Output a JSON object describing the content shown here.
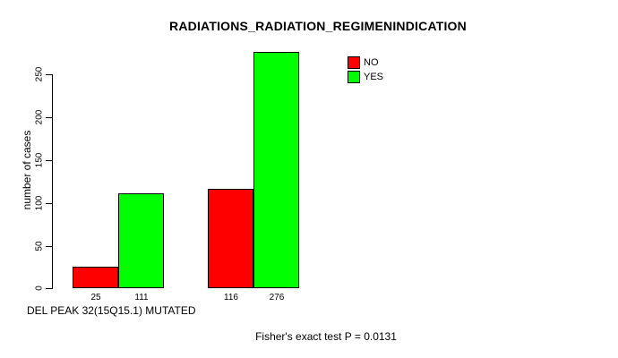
{
  "title": "RADIATIONS_RADIATION_REGIMENINDICATION",
  "y_axis": {
    "label": "number of cases",
    "ticks": [
      "0",
      "50",
      "100",
      "150",
      "200",
      "250"
    ]
  },
  "x_axis": {
    "label": "DEL PEAK 32(15Q15.1) MUTATED"
  },
  "legend": {
    "items": [
      {
        "label": "NO",
        "color": "#FF0000"
      },
      {
        "label": "YES",
        "color": "#00FF00"
      }
    ]
  },
  "footnote": "Fisher's exact test P = 0.0131",
  "chart_data": {
    "type": "bar",
    "grouped": true,
    "title": "RADIATIONS_RADIATION_REGIMENINDICATION",
    "xlabel": "DEL PEAK 32(15Q15.1) MUTATED",
    "ylabel": "number of cases",
    "series": [
      {
        "name": "NO",
        "color": "#FF0000",
        "values": [
          25,
          116
        ]
      },
      {
        "name": "YES",
        "color": "#00FF00",
        "values": [
          111,
          276
        ]
      }
    ],
    "bar_value_labels": [
      "25",
      "111",
      "116",
      "276"
    ],
    "yticks": [
      0,
      50,
      100,
      150,
      200,
      250
    ],
    "ylim": [
      0,
      280
    ],
    "grid": false,
    "legend_position": "top-right",
    "annotation": "Fisher's exact test P = 0.0131"
  }
}
